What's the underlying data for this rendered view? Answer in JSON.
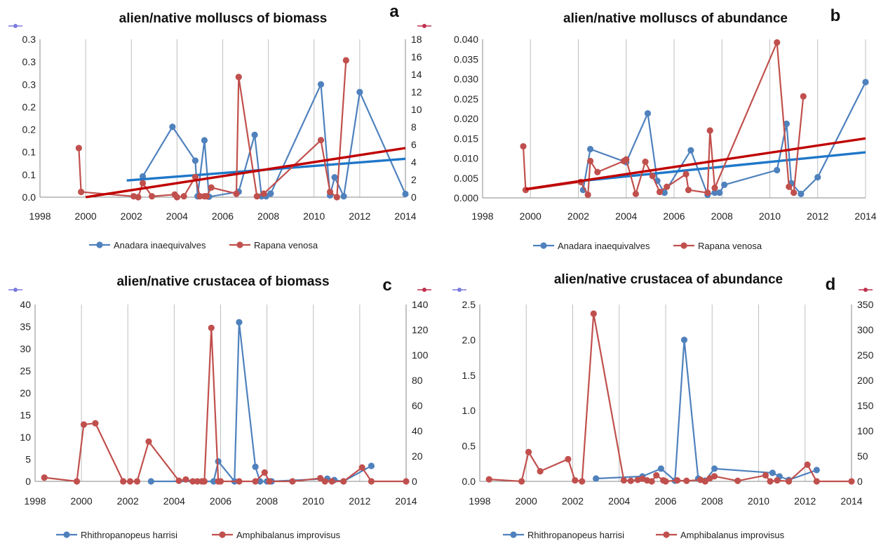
{
  "colors": {
    "blue": "#4F81BD",
    "red": "#C0504D",
    "trend_blue": "#1F77C8",
    "trend_red": "#C00000",
    "grid": "#BFBFBF"
  },
  "chart_data": [
    {
      "type": "line",
      "letter": "a",
      "title": "alien/native molluscs  of biomass",
      "xlim": [
        1998,
        2014
      ],
      "xticks": [
        1998,
        2000,
        2002,
        2004,
        2006,
        2008,
        2010,
        2012,
        2014
      ],
      "ylim_left": [
        0,
        0.35
      ],
      "yticks_left": [
        0,
        0.05,
        0.1,
        0.15,
        0.2,
        0.25,
        0.3,
        0.35
      ],
      "ytick_labels_left": [
        "0.0",
        "0.1",
        "0.1",
        "0.2",
        "0.2",
        "0.3",
        "0.3",
        "0.3"
      ],
      "ylim_right": [
        0,
        18
      ],
      "yticks_right": [
        0,
        2,
        4,
        6,
        8,
        10,
        12,
        14,
        16,
        18
      ],
      "ytick_labels_right": [
        "0",
        "2",
        "4",
        "6",
        "8",
        "10",
        "12",
        "14",
        "16",
        "18"
      ],
      "grid": "vertical",
      "series": [
        {
          "name": "Anadara inaequivalves",
          "axis": "left",
          "color": "blue",
          "x": [
            2002.5,
            2003.8,
            2004.8,
            2004.9,
            2005.2,
            2005.4,
            2006.7,
            2007.4,
            2007.7,
            2007.9,
            2008.1,
            2010.3,
            2010.7,
            2010.9,
            2011.3,
            2012.0,
            2014.0
          ],
          "y": [
            0.046,
            0.156,
            0.081,
            0.002,
            0.126,
            0.001,
            0.012,
            0.138,
            0.002,
            0.002,
            0.008,
            0.25,
            0.004,
            0.044,
            0.002,
            0.233,
            0.007
          ],
          "trend": {
            "x": [
              2001.8,
              2014.0
            ],
            "y": [
              0.037,
              0.085
            ],
            "color": "trend_blue"
          }
        },
        {
          "name": "Rapana venosa",
          "axis": "right",
          "color": "red",
          "x": [
            1999.7,
            1999.8,
            2002.1,
            2002.3,
            2002.5,
            2002.9,
            2003.9,
            2004.0,
            2004.3,
            2004.8,
            2005.0,
            2005.2,
            2005.3,
            2005.5,
            2006.6,
            2006.7,
            2007.5,
            2007.8,
            2010.3,
            2010.7,
            2011.0,
            2011.4
          ],
          "y": [
            5.6,
            0.6,
            0.1,
            0.0,
            1.6,
            0.1,
            0.3,
            0.0,
            0.1,
            2.3,
            0.1,
            0.1,
            0.1,
            1.1,
            0.4,
            13.7,
            0.1,
            0.4,
            6.5,
            0.6,
            0.0,
            15.6
          ],
          "trend": {
            "x": [
              2000.0,
              2014.0
            ],
            "y": [
              0.0,
              5.6
            ],
            "color": "trend_red"
          }
        }
      ]
    },
    {
      "type": "line",
      "letter": "b",
      "title": "alien/native molluscs of abundance",
      "xlim": [
        1998,
        2014
      ],
      "xticks": [
        1998,
        2000,
        2002,
        2004,
        2006,
        2008,
        2010,
        2012,
        2014
      ],
      "ylim_left": [
        0,
        0.04
      ],
      "yticks_left": [
        0,
        0.005,
        0.01,
        0.015,
        0.02,
        0.025,
        0.03,
        0.035,
        0.04
      ],
      "ytick_labels_left": [
        "0.000",
        "0.005",
        "0.010",
        "0.015",
        "0.020",
        "0.025",
        "0.030",
        "0.035",
        "0.040"
      ],
      "grid": "vertical",
      "series": [
        {
          "name": "Anadara inaequivalves",
          "axis": "left",
          "color": "blue",
          "x": [
            2002.2,
            2002.5,
            2004.0,
            2004.9,
            2005.3,
            2005.6,
            2006.7,
            2007.4,
            2007.7,
            2007.9,
            2008.1,
            2010.3,
            2010.7,
            2010.9,
            2011.3,
            2012.0,
            2014.0
          ],
          "y": [
            0.002,
            0.0123,
            0.009,
            0.0213,
            0.0043,
            0.0013,
            0.012,
            0.0008,
            0.0013,
            0.0013,
            0.0033,
            0.007,
            0.0187,
            0.0037,
            0.001,
            0.0052,
            0.0292
          ],
          "trend": {
            "x": [
              2002.0,
              2014.0
            ],
            "y": [
              0.0042,
              0.0115
            ],
            "color": "trend_blue"
          }
        },
        {
          "name": "Rapana venosa",
          "axis": "left",
          "color": "red",
          "x": [
            1999.7,
            1999.8,
            2002.1,
            2002.4,
            2002.5,
            2002.8,
            2003.9,
            2004.0,
            2004.4,
            2004.8,
            2005.1,
            2005.4,
            2005.7,
            2006.5,
            2006.6,
            2007.4,
            2007.5,
            2007.7,
            2010.3,
            2010.8,
            2011.0,
            2011.4
          ],
          "y": [
            0.013,
            0.002,
            0.004,
            0.0008,
            0.0093,
            0.0065,
            0.0093,
            0.0097,
            0.001,
            0.0091,
            0.0055,
            0.0015,
            0.0028,
            0.006,
            0.002,
            0.0013,
            0.017,
            0.0025,
            0.0392,
            0.0028,
            0.0013,
            0.0256
          ],
          "trend": {
            "x": [
              1999.8,
              2014.0
            ],
            "y": [
              0.0022,
              0.015
            ],
            "color": "trend_red"
          }
        }
      ]
    },
    {
      "type": "line",
      "letter": "c",
      "title": "alien/native crustacea of biomass",
      "xlim": [
        1998,
        2014
      ],
      "xticks": [
        1998,
        2000,
        2002,
        2004,
        2006,
        2008,
        2010,
        2012,
        2014
      ],
      "ylim_left": [
        0,
        40
      ],
      "yticks_left": [
        0,
        5,
        10,
        15,
        20,
        25,
        30,
        35,
        40
      ],
      "ytick_labels_left": [
        "0",
        "5",
        "10",
        "15",
        "20",
        "25",
        "30",
        "35",
        "40"
      ],
      "ylim_right": [
        0,
        140
      ],
      "yticks_right": [
        0,
        20,
        40,
        60,
        80,
        100,
        120,
        140
      ],
      "ytick_labels_right": [
        "0",
        "20",
        "40",
        "60",
        "80",
        "100",
        "120",
        "140"
      ],
      "grid": "vertical",
      "series": [
        {
          "name": "Rhithropanopeus harrisi",
          "axis": "left",
          "color": "blue",
          "x": [
            2003.0,
            2005.7,
            2005.9,
            2006.6,
            2006.8,
            2007.5,
            2007.7,
            2008.0,
            2008.2,
            2010.6,
            2010.9,
            2011.3,
            2012.5
          ],
          "y": [
            0.0,
            0.0,
            4.5,
            0.0,
            36.0,
            3.3,
            0.0,
            0.0,
            0.0,
            0.6,
            0.3,
            0.0,
            3.5
          ],
          "trend": null
        },
        {
          "name": "Amphibalanus improvisus",
          "axis": "right",
          "color": "red",
          "x": [
            1998.4,
            1999.8,
            2000.1,
            2000.6,
            2001.8,
            2002.1,
            2002.4,
            2002.9,
            2004.2,
            2004.5,
            2004.8,
            2005.0,
            2005.2,
            2005.3,
            2005.6,
            2005.9,
            2006.0,
            2006.8,
            2007.5,
            2007.9,
            2008.1,
            2009.1,
            2010.3,
            2010.5,
            2010.8,
            2011.3,
            2012.1,
            2012.5,
            2014.0
          ],
          "y": [
            3.0,
            0.0,
            45.0,
            46.0,
            0.0,
            0.0,
            0.0,
            31.5,
            0.5,
            1.5,
            0.0,
            0.0,
            0.0,
            0.0,
            121.5,
            0.0,
            0.0,
            0.0,
            0.0,
            7.0,
            0.0,
            0.0,
            2.5,
            0.0,
            0.0,
            0.0,
            11.0,
            0.0,
            0.0
          ],
          "trend": null
        }
      ]
    },
    {
      "type": "line",
      "letter": "d",
      "title": "alien/native crustacea of abundance",
      "xlim": [
        1998,
        2014
      ],
      "xticks": [
        1998,
        2000,
        2002,
        2004,
        2006,
        2008,
        2010,
        2012,
        2014
      ],
      "ylim_left": [
        0,
        2.5
      ],
      "yticks_left": [
        0,
        0.5,
        1.0,
        1.5,
        2.0,
        2.5
      ],
      "ytick_labels_left": [
        "0.0",
        "0.5",
        "1.0",
        "1.5",
        "2.0",
        "2.5"
      ],
      "ylim_right": [
        0,
        350
      ],
      "yticks_right": [
        0,
        50,
        100,
        150,
        200,
        250,
        300,
        350
      ],
      "ytick_labels_right": [
        "0",
        "50",
        "100",
        "150",
        "200",
        "250",
        "300",
        "350"
      ],
      "grid": "vertical",
      "series": [
        {
          "name": "Rhithropanopeus harrisi",
          "axis": "left",
          "color": "blue",
          "x": [
            2003.0,
            2005.0,
            2005.8,
            2006.4,
            2006.8,
            2007.4,
            2007.7,
            2008.1,
            2010.6,
            2010.9,
            2011.3,
            2012.5
          ],
          "y": [
            0.04,
            0.07,
            0.18,
            0.01,
            2.0,
            0.04,
            0.01,
            0.18,
            0.12,
            0.07,
            0.02,
            0.16
          ],
          "trend": null
        },
        {
          "name": "Amphibalanus improvisus",
          "axis": "right",
          "color": "red",
          "x": [
            1998.4,
            1999.8,
            2000.1,
            2000.6,
            2001.8,
            2002.1,
            2002.4,
            2002.9,
            2004.2,
            2004.5,
            2004.8,
            2005.0,
            2005.2,
            2005.4,
            2005.6,
            2005.9,
            2006.0,
            2006.5,
            2006.9,
            2007.5,
            2007.7,
            2007.9,
            2008.1,
            2009.1,
            2010.3,
            2010.5,
            2010.8,
            2011.3,
            2012.1,
            2012.5,
            2014.0
          ],
          "y": [
            4.0,
            0.0,
            58.0,
            20.0,
            44.0,
            2.0,
            0.0,
            332.0,
            2.0,
            1.0,
            3.0,
            5.0,
            2.0,
            0.0,
            12.0,
            2.0,
            0.0,
            2.0,
            1.0,
            3.0,
            0.0,
            6.0,
            10.0,
            1.0,
            12.0,
            0.0,
            2.0,
            0.0,
            33.0,
            0.0,
            0.0
          ],
          "trend": null
        }
      ]
    }
  ]
}
